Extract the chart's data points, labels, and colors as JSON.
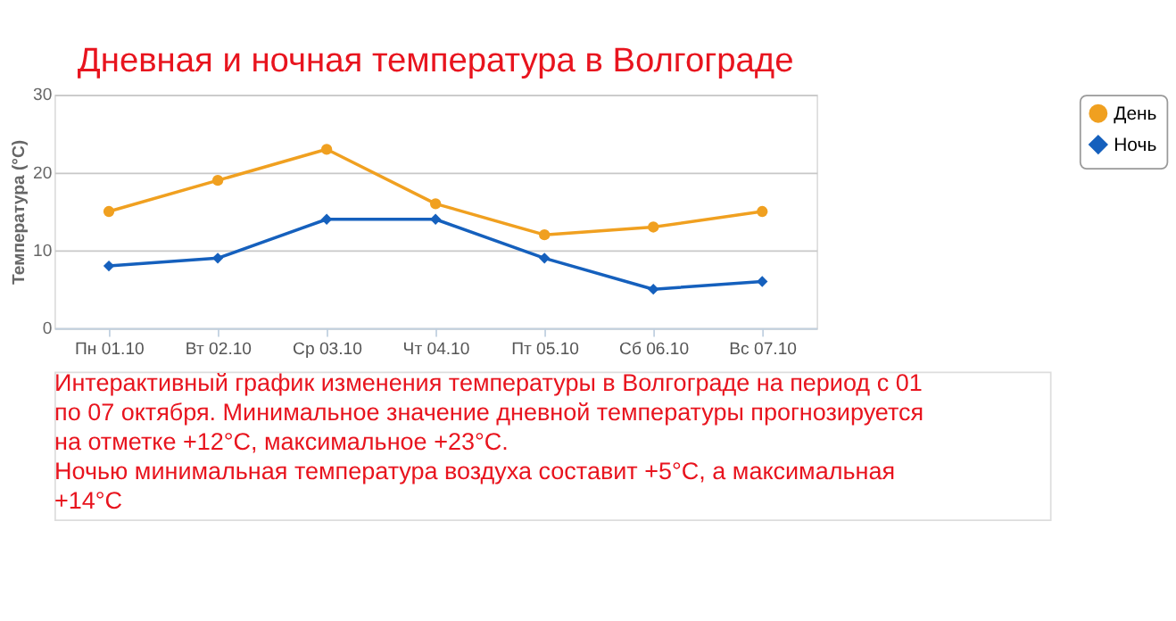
{
  "chart_data": {
    "type": "line",
    "title": "Дневная и ночная температура в Волгограде",
    "ylabel": "Температура (°C)",
    "categories": [
      "Пн 01.10",
      "Вт 02.10",
      "Ср 03.10",
      "Чт 04.10",
      "Пт 05.10",
      "Сб 06.10",
      "Вс 07.10"
    ],
    "series": [
      {
        "name": "День",
        "color": "#f0a020",
        "marker": "circle",
        "values": [
          15,
          19,
          23,
          16,
          12,
          13,
          15
        ]
      },
      {
        "name": "Ночь",
        "color": "#1560bd",
        "marker": "diamond",
        "values": [
          8,
          9,
          14,
          14,
          9,
          5,
          6
        ]
      }
    ],
    "ylim": [
      0,
      30
    ],
    "yticks": [
      0,
      10,
      20,
      30
    ],
    "grid": "y",
    "legend": "right",
    "annotations": [
      "Интерактивный график изменения температуры в Волгограде на период с 01 по 07 октября. Минимальное значение дневной температуры прогнозируется на отметке +12°C, максимальное +23°C.",
      "Ночью минимальная температура воздуха составит +5°C, а максимальная +14°C"
    ]
  }
}
